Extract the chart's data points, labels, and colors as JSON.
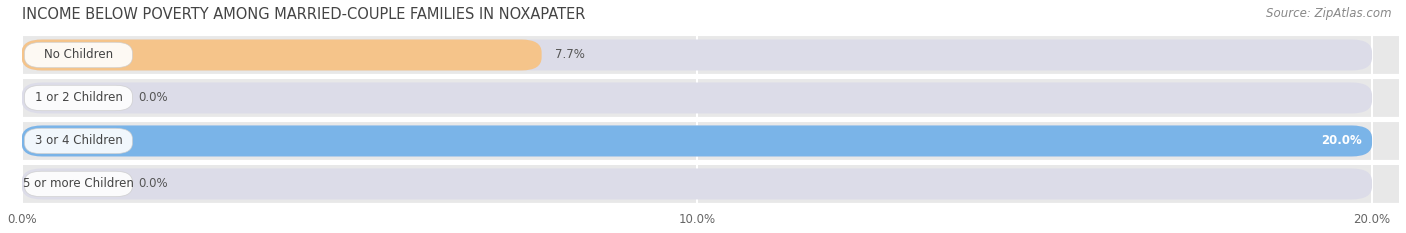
{
  "title": "INCOME BELOW POVERTY AMONG MARRIED-COUPLE FAMILIES IN NOXAPATER",
  "source": "Source: ZipAtlas.com",
  "categories": [
    "No Children",
    "1 or 2 Children",
    "3 or 4 Children",
    "5 or more Children"
  ],
  "values": [
    7.7,
    0.0,
    20.0,
    0.0
  ],
  "bar_colors": [
    "#f5c48a",
    "#f0a8b0",
    "#7ab4e8",
    "#c8b0e0"
  ],
  "background_color": "#ffffff",
  "bar_bg_color": "#e8e8e8",
  "bar_bg_color2": "#e0e0e8",
  "xlim_max": 20.0,
  "xticks": [
    0.0,
    10.0,
    20.0
  ],
  "xtick_labels": [
    "0.0%",
    "10.0%",
    "20.0%"
  ],
  "bar_height": 0.72,
  "label_fontsize": 8.5,
  "title_fontsize": 10.5,
  "value_fontsize": 8.5,
  "source_fontsize": 8.5,
  "grid_color": "#ffffff",
  "text_color": "#444444",
  "source_color": "#888888",
  "value_label_color": "#555555",
  "value_label_inside_color": "#ffffff"
}
